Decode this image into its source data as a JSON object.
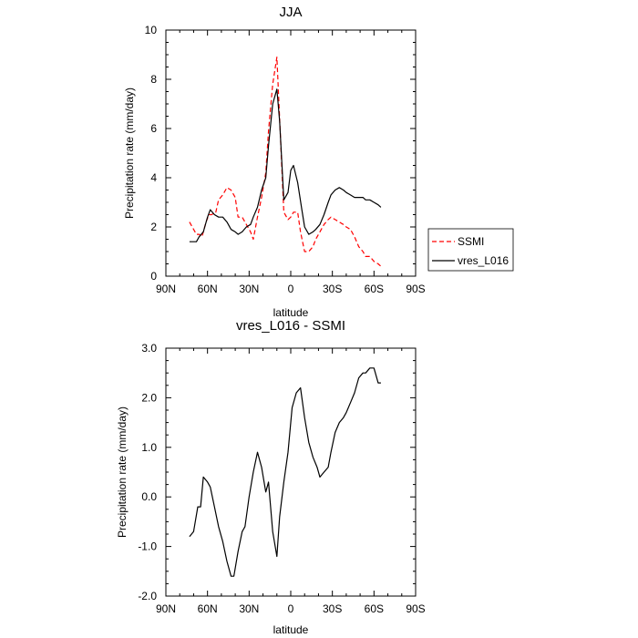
{
  "chart_data": [
    {
      "type": "line",
      "title": "JJA",
      "xlabel": "latitude",
      "ylabel": "Precipitation rate (mm/day)",
      "xlim": [
        90,
        -90
      ],
      "ylim": [
        0,
        10
      ],
      "x_ticks": [
        {
          "value": 90,
          "label": "90N"
        },
        {
          "value": 60,
          "label": "60N"
        },
        {
          "value": 30,
          "label": "30N"
        },
        {
          "value": 0,
          "label": "0"
        },
        {
          "value": -30,
          "label": "30S"
        },
        {
          "value": -60,
          "label": "60S"
        },
        {
          "value": -90,
          "label": "90S"
        }
      ],
      "y_ticks": [
        {
          "value": 0,
          "label": "0"
        },
        {
          "value": 2,
          "label": "2"
        },
        {
          "value": 4,
          "label": "4"
        },
        {
          "value": 6,
          "label": "6"
        },
        {
          "value": 8,
          "label": "8"
        },
        {
          "value": 10,
          "label": "10"
        }
      ],
      "legend_position": "right",
      "series": [
        {
          "name": "SSMI",
          "color": "#ff0000",
          "style": "dashed",
          "x": [
            73,
            71,
            68,
            66,
            64,
            61,
            59,
            57,
            54,
            52,
            49,
            46,
            43,
            40,
            38,
            35,
            32,
            29,
            27,
            24,
            21,
            18,
            16,
            13,
            10,
            8,
            5,
            2,
            0,
            -2,
            -5,
            -7,
            -10,
            -13,
            -16,
            -18,
            -21,
            -24,
            -27,
            -29,
            -32,
            -35,
            -38,
            -40,
            -43,
            -46,
            -49,
            -52,
            -54,
            -57,
            -60,
            -63,
            -65
          ],
          "y": [
            2.2,
            2.0,
            1.7,
            1.7,
            1.6,
            2.2,
            2.5,
            2.5,
            2.6,
            3.1,
            3.3,
            3.6,
            3.5,
            3.2,
            2.4,
            2.4,
            2.1,
            1.8,
            1.5,
            2.4,
            3.2,
            4.2,
            5.9,
            7.8,
            8.9,
            6.4,
            2.6,
            2.3,
            2.4,
            2.6,
            2.6,
            1.8,
            1.0,
            1.0,
            1.2,
            1.5,
            1.8,
            2.1,
            2.3,
            2.4,
            2.3,
            2.2,
            2.1,
            2.0,
            1.9,
            1.6,
            1.2,
            1.0,
            0.8,
            0.8,
            0.6,
            0.5,
            0.4
          ]
        },
        {
          "name": "vres_L016",
          "color": "#000000",
          "style": "solid",
          "x": [
            73,
            71,
            68,
            66,
            63,
            60,
            58,
            55,
            52,
            49,
            46,
            43,
            40,
            38,
            35,
            32,
            29,
            27,
            24,
            21,
            18,
            16,
            13,
            10,
            8,
            5,
            2,
            0,
            -2,
            -5,
            -8,
            -10,
            -13,
            -16,
            -18,
            -21,
            -24,
            -27,
            -29,
            -32,
            -35,
            -38,
            -40,
            -43,
            -46,
            -49,
            -52,
            -54,
            -57,
            -60,
            -63,
            -65
          ],
          "y": [
            1.4,
            1.4,
            1.4,
            1.6,
            1.8,
            2.4,
            2.7,
            2.5,
            2.4,
            2.4,
            2.2,
            1.9,
            1.8,
            1.7,
            1.8,
            2.0,
            2.1,
            2.4,
            2.8,
            3.5,
            4.0,
            5.3,
            7.0,
            7.6,
            6.3,
            3.1,
            3.4,
            4.3,
            4.5,
            3.8,
            2.7,
            2.0,
            1.7,
            1.8,
            1.9,
            2.1,
            2.5,
            3.0,
            3.3,
            3.5,
            3.6,
            3.5,
            3.4,
            3.3,
            3.2,
            3.2,
            3.2,
            3.1,
            3.1,
            3.0,
            2.9,
            2.8
          ]
        }
      ]
    },
    {
      "type": "line",
      "title": "vres_L016 - SSMI",
      "xlabel": "latitude",
      "ylabel": "Precipitation rate (mm/day)",
      "xlim": [
        90,
        -90
      ],
      "ylim": [
        -2.0,
        3.0
      ],
      "x_ticks": [
        {
          "value": 90,
          "label": "90N"
        },
        {
          "value": 60,
          "label": "60N"
        },
        {
          "value": 30,
          "label": "30N"
        },
        {
          "value": 0,
          "label": "0"
        },
        {
          "value": -30,
          "label": "30S"
        },
        {
          "value": -60,
          "label": "60S"
        },
        {
          "value": -90,
          "label": "90S"
        }
      ],
      "y_ticks": [
        {
          "value": -2.0,
          "label": "-2.0"
        },
        {
          "value": -1.0,
          "label": "-1.0"
        },
        {
          "value": 0.0,
          "label": "0.0"
        },
        {
          "value": 1.0,
          "label": "1.0"
        },
        {
          "value": 2.0,
          "label": "2.0"
        },
        {
          "value": 3.0,
          "label": "3.0"
        }
      ],
      "series": [
        {
          "color": "#000000",
          "style": "solid",
          "x": [
            73,
            70,
            67,
            65,
            63,
            60,
            58,
            55,
            52,
            49,
            46,
            43,
            41,
            38,
            35,
            33,
            30,
            27,
            24,
            21,
            18,
            16,
            13,
            10,
            8,
            5,
            2,
            -1,
            -4,
            -7,
            -10,
            -13,
            -16,
            -19,
            -21,
            -24,
            -27,
            -29,
            -32,
            -35,
            -38,
            -40,
            -43,
            -46,
            -49,
            -52,
            -54,
            -57,
            -60,
            -63,
            -65
          ],
          "y": [
            -0.8,
            -0.7,
            -0.2,
            -0.2,
            0.4,
            0.3,
            0.2,
            -0.2,
            -0.6,
            -0.9,
            -1.3,
            -1.6,
            -1.6,
            -1.1,
            -0.7,
            -0.6,
            0.0,
            0.5,
            0.9,
            0.6,
            0.1,
            0.3,
            -0.7,
            -1.2,
            -0.4,
            0.3,
            0.9,
            1.8,
            2.1,
            2.2,
            1.6,
            1.1,
            0.8,
            0.6,
            0.4,
            0.5,
            0.6,
            0.9,
            1.3,
            1.5,
            1.6,
            1.7,
            1.9,
            2.1,
            2.4,
            2.5,
            2.5,
            2.6,
            2.6,
            2.3,
            2.3
          ]
        }
      ]
    }
  ]
}
